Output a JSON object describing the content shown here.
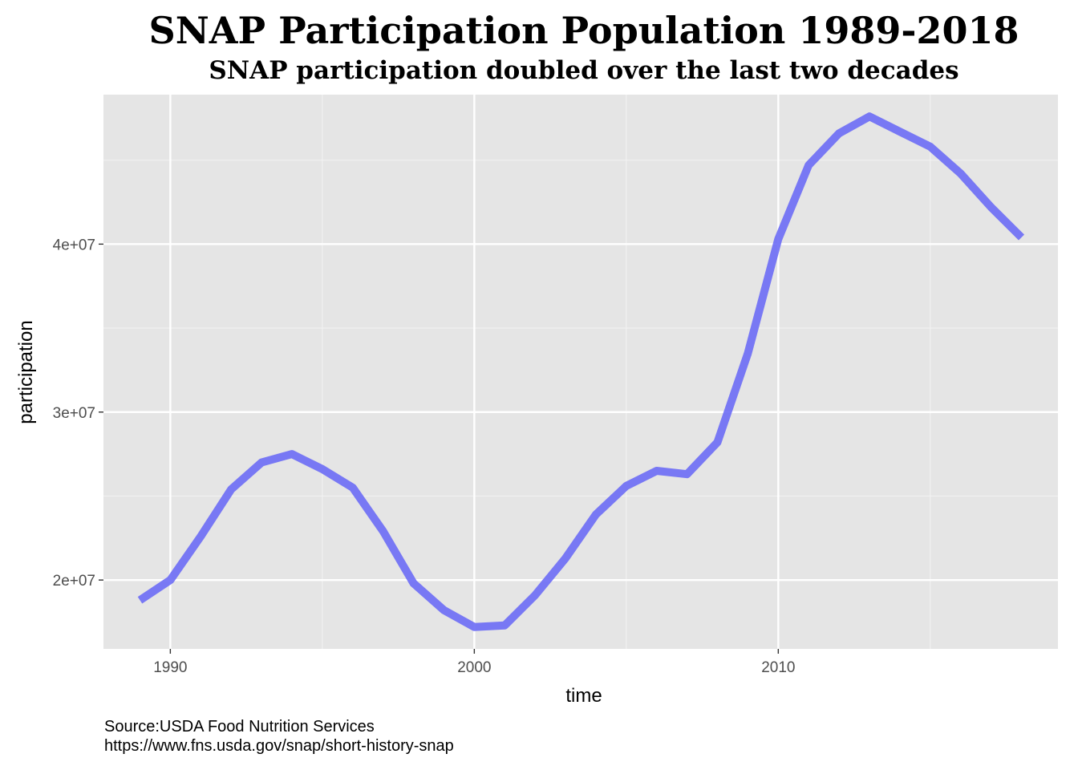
{
  "chart_data": {
    "type": "line",
    "title": "SNAP Participation Population 1989-2018",
    "subtitle": "SNAP participation doubled over the last two decades",
    "xlabel": "time",
    "ylabel": "participation",
    "xlim": [
      1987.8,
      2019.2
    ],
    "ylim": [
      15900000,
      48900000
    ],
    "x_ticks": [
      1990,
      2000,
      2010
    ],
    "x_tick_labels": [
      "1990",
      "2000",
      "2010"
    ],
    "x_minor_ticks": [
      1995,
      2005,
      2015
    ],
    "y_ticks": [
      20000000,
      30000000,
      40000000
    ],
    "y_tick_labels": [
      "2e+07",
      "3e+07",
      "4e+07"
    ],
    "y_minor_ticks": [
      25000000,
      35000000,
      45000000
    ],
    "grid": true,
    "line_color": "#6b6bf5",
    "panel_background": "#e5e5e5",
    "x": [
      1989,
      1990,
      1991,
      1992,
      1993,
      1994,
      1995,
      1996,
      1997,
      1998,
      1999,
      2000,
      2001,
      2002,
      2003,
      2004,
      2005,
      2006,
      2007,
      2008,
      2009,
      2010,
      2011,
      2012,
      2013,
      2014,
      2015,
      2016,
      2017,
      2018
    ],
    "values": [
      18800000,
      20000000,
      22600000,
      25400000,
      27000000,
      27500000,
      26600000,
      25500000,
      22900000,
      19800000,
      18200000,
      17200000,
      17300000,
      19100000,
      21300000,
      23900000,
      25600000,
      26500000,
      26300000,
      28200000,
      33500000,
      40300000,
      44700000,
      46600000,
      47600000,
      46700000,
      45800000,
      44200000,
      42200000,
      40400000
    ]
  },
  "caption": {
    "source": "Source:USDA Food Nutrition Services",
    "url": "https://www.fns.usda.gov/snap/short-history-snap"
  }
}
